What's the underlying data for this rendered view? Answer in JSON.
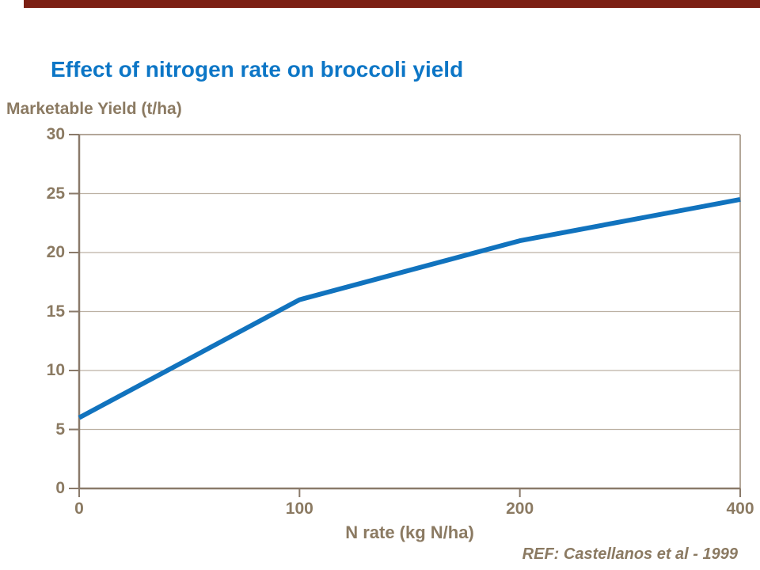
{
  "page": {
    "accent_bar_color": "#7C2014",
    "background_color": "#FFFFFF"
  },
  "chart_data": {
    "type": "line",
    "title": "Effect of nitrogen rate on broccoli yield",
    "title_color": "#0C76C6",
    "y_axis_title": "Marketable Yield (t/ha)",
    "xlabel": "N rate (kg N/ha)",
    "categories": [
      "0",
      "100",
      "200",
      "400"
    ],
    "series": [
      {
        "name": "Marketable yield",
        "values": [
          6,
          16,
          21,
          24.5
        ]
      }
    ],
    "ylim": [
      0,
      30
    ],
    "y_ticks": [
      0,
      5,
      10,
      15,
      20,
      25,
      30
    ],
    "x_axis_type": "categorical-equally-spaced",
    "grid": "horizontal",
    "legend": "none",
    "line_color": "#1173BE",
    "axis_color": "#8A7A6A",
    "border_color": "#B3A799",
    "grid_color": "#BCB1A3",
    "tick_label_color": "#8B7A62"
  },
  "footer": {
    "reference": "REF: Castellanos et al - 1999"
  }
}
